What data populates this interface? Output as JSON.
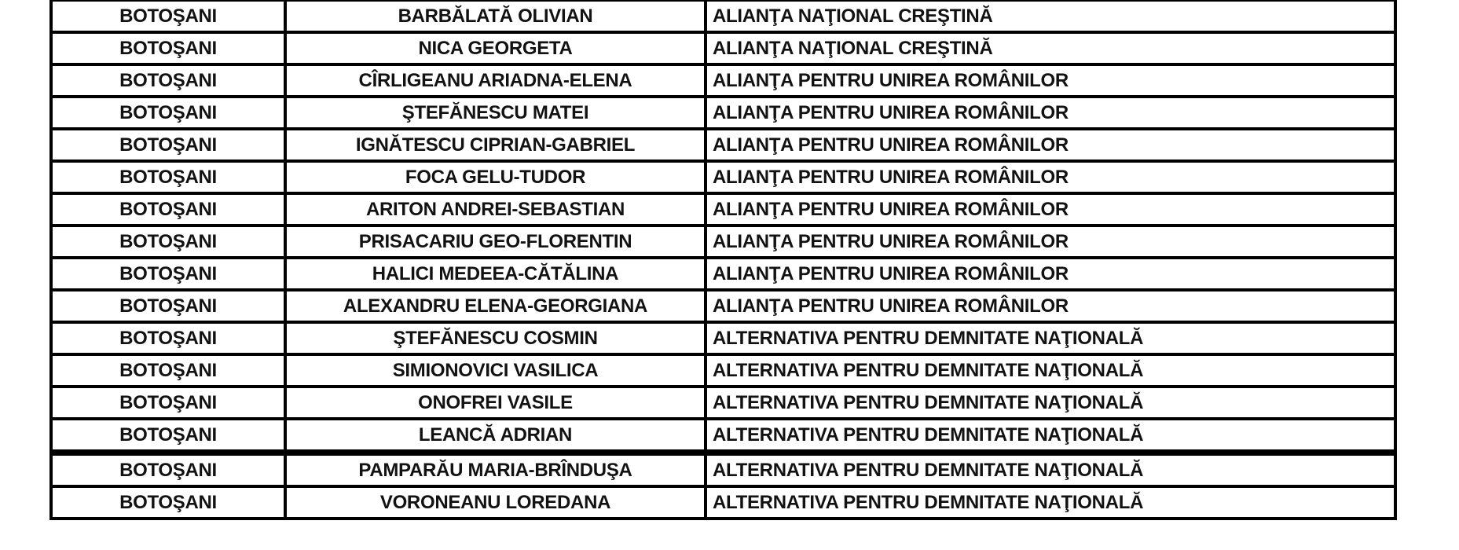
{
  "document": {
    "type": "scanned-table-page",
    "language": "ro"
  },
  "colors": {
    "background": "#ffffff",
    "border": "#000000",
    "text": "#121212"
  },
  "table": {
    "columns": [
      "county",
      "candidate",
      "party"
    ],
    "rows": [
      {
        "county": "BOTOŞANI",
        "candidate": "BARBĂLATĂ OLIVIAN",
        "party": "ALIANŢA NAŢIONAL CREŞTINĂ"
      },
      {
        "county": "BOTOŞANI",
        "candidate": "NICA GEORGETA",
        "party": "ALIANŢA NAŢIONAL CREŞTINĂ"
      },
      {
        "county": "BOTOŞANI",
        "candidate": "CÎRLIGEANU ARIADNA-ELENA",
        "party": "ALIANŢA PENTRU UNIREA ROMÂNILOR"
      },
      {
        "county": "BOTOŞANI",
        "candidate": "ŞTEFĂNESCU MATEI",
        "party": "ALIANŢA PENTRU UNIREA ROMÂNILOR"
      },
      {
        "county": "BOTOŞANI",
        "candidate": "IGNĂTESCU CIPRIAN-GABRIEL",
        "party": "ALIANŢA PENTRU UNIREA ROMÂNILOR"
      },
      {
        "county": "BOTOŞANI",
        "candidate": "FOCA GELU-TUDOR",
        "party": "ALIANŢA PENTRU UNIREA ROMÂNILOR"
      },
      {
        "county": "BOTOŞANI",
        "candidate": "ARITON ANDREI-SEBASTIAN",
        "party": "ALIANŢA PENTRU UNIREA ROMÂNILOR"
      },
      {
        "county": "BOTOŞANI",
        "candidate": "PRISACARIU GEO-FLORENTIN",
        "party": "ALIANŢA PENTRU UNIREA ROMÂNILOR"
      },
      {
        "county": "BOTOŞANI",
        "candidate": "HALICI MEDEEA-CĂTĂLINA",
        "party": "ALIANŢA PENTRU UNIREA ROMÂNILOR"
      },
      {
        "county": "BOTOŞANI",
        "candidate": "ALEXANDRU ELENA-GEORGIANA",
        "party": "ALIANŢA PENTRU UNIREA ROMÂNILOR"
      },
      {
        "county": "BOTOŞANI",
        "candidate": "ŞTEFĂNESCU COSMIN",
        "party": "ALTERNATIVA PENTRU DEMNITATE NAŢIONALĂ"
      },
      {
        "county": "BOTOŞANI",
        "candidate": "SIMIONOVICI VASILICA",
        "party": "ALTERNATIVA PENTRU DEMNITATE NAŢIONALĂ"
      },
      {
        "county": "BOTOŞANI",
        "candidate": "ONOFREI VASILE",
        "party": "ALTERNATIVA PENTRU DEMNITATE NAŢIONALĂ"
      },
      {
        "county": "BOTOŞANI",
        "candidate": "LEANCĂ ADRIAN",
        "party": "ALTERNATIVA PENTRU DEMNITATE NAŢIONALĂ"
      },
      {
        "county": "BOTOŞANI",
        "candidate": "PAMPARĂU MARIA-BRÎNDUŞA",
        "party": "ALTERNATIVA PENTRU DEMNITATE NAŢIONALĂ"
      },
      {
        "county": "BOTOŞANI",
        "candidate": "VORONEANU LOREDANA",
        "party": "ALTERNATIVA PENTRU DEMNITATE NAŢIONALĂ"
      }
    ]
  }
}
